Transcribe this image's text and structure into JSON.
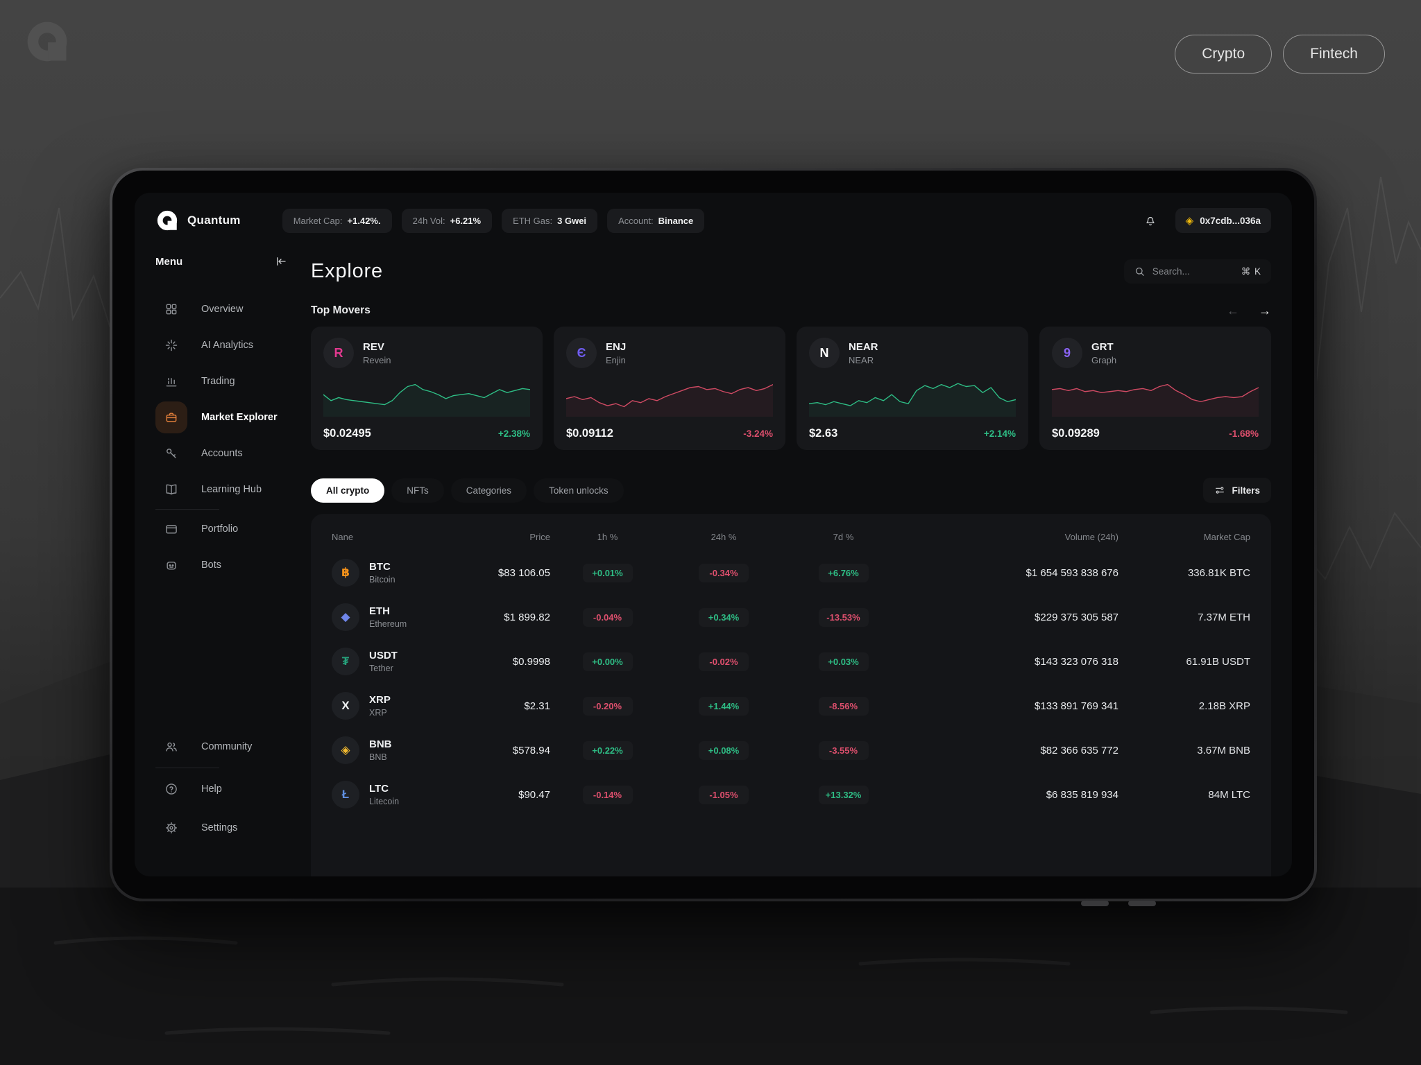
{
  "page": {
    "tags": [
      {
        "label": "Crypto"
      },
      {
        "label": "Fintech"
      }
    ]
  },
  "tablet": {
    "header": {
      "brand": "Quantum",
      "stats": [
        {
          "label": "Market Cap:",
          "value": "+1.42%."
        },
        {
          "label": "24h Vol:",
          "value": "+6.21%"
        },
        {
          "label": "ETH Gas:",
          "value": "3 Gwei"
        },
        {
          "label": "Account:",
          "value": "Binance"
        }
      ],
      "wallet_icon": "◈",
      "wallet": "0x7cdb...036a"
    },
    "sidebar": {
      "title": "Menu",
      "items": [
        {
          "label": "Overview",
          "icon": "overview-icon",
          "active": false
        },
        {
          "label": "AI Analytics",
          "icon": "ai-analytics-icon",
          "active": false
        },
        {
          "label": "Trading",
          "icon": "trading-icon",
          "active": false
        },
        {
          "label": "Market Explorer",
          "icon": "market-explorer-icon",
          "active": true
        },
        {
          "label": "Accounts",
          "icon": "accounts-icon",
          "active": false
        },
        {
          "label": "Learning Hub",
          "icon": "learning-hub-icon",
          "active": false
        },
        {
          "label": "Portfolio",
          "icon": "portfolio-icon",
          "active": false
        },
        {
          "label": "Bots",
          "icon": "bots-icon",
          "active": false
        }
      ],
      "footer_items": [
        {
          "label": "Community",
          "icon": "community-icon"
        },
        {
          "label": "Help",
          "icon": "help-icon"
        },
        {
          "label": "Settings",
          "icon": "settings-icon"
        }
      ]
    },
    "main": {
      "title": "Explore",
      "search": {
        "placeholder": "Search...",
        "shortcut": "⌘ K"
      },
      "top_movers": {
        "title": "Top Movers",
        "prev_icon": "←",
        "next_icon": "→",
        "cards": [
          {
            "symbol": "REV",
            "name": "Revein",
            "glyph": "R",
            "accent": "#e2398f",
            "price": "$0.02495",
            "change": "+2.38%",
            "trend": "up",
            "spark_color": "#2ebd85",
            "spark": [
              18,
              24,
              21,
              23,
              24,
              25,
              26,
              27,
              28,
              24,
              16,
              10,
              8,
              13,
              15,
              18,
              22,
              19,
              18,
              17,
              19,
              21,
              17,
              13,
              16,
              14,
              12,
              13
            ]
          },
          {
            "symbol": "ENJ",
            "name": "Enjin",
            "glyph": "Є",
            "accent": "#6f5cf0",
            "price": "$0.09112",
            "change": "-3.24%",
            "trend": "down",
            "spark_color": "#cf4a63",
            "spark": [
              22,
              20,
              23,
              21,
              26,
              29,
              27,
              30,
              24,
              26,
              22,
              24,
              20,
              17,
              14,
              11,
              10,
              13,
              12,
              15,
              17,
              13,
              11,
              14,
              12,
              8
            ]
          },
          {
            "symbol": "NEAR",
            "name": "NEAR",
            "glyph": "N",
            "accent": "#ffffff",
            "price": "$2.63",
            "change": "+2.14%",
            "trend": "up",
            "spark_color": "#2ebd85",
            "spark": [
              27,
              26,
              28,
              25,
              27,
              29,
              24,
              26,
              21,
              24,
              18,
              25,
              27,
              14,
              9,
              12,
              8,
              11,
              7,
              10,
              9,
              16,
              11,
              21,
              25,
              23
            ]
          },
          {
            "symbol": "GRT",
            "name": "Graph",
            "glyph": "9",
            "accent": "#8a63f5",
            "price": "$0.09289",
            "change": "-1.68%",
            "trend": "down",
            "spark_color": "#cf4a63",
            "spark": [
              13,
              12,
              14,
              12,
              15,
              14,
              16,
              15,
              14,
              15,
              13,
              12,
              14,
              10,
              8,
              14,
              18,
              23,
              25,
              23,
              21,
              20,
              21,
              20,
              15,
              11
            ]
          }
        ]
      },
      "tabs": [
        {
          "label": "All crypto",
          "active": true
        },
        {
          "label": "NFTs",
          "active": false
        },
        {
          "label": "Categories",
          "active": false
        },
        {
          "label": "Token unlocks",
          "active": false
        }
      ],
      "filters_label": "Filters",
      "table": {
        "columns": [
          "Nane",
          "Price",
          "1h %",
          "24h %",
          "7d %",
          "Volume (24h)",
          "Market Cap"
        ],
        "rows": [
          {
            "symbol": "BTC",
            "name": "Bitcoin",
            "glyph": "฿",
            "glyph_color": "#f7931a",
            "price": "$83 106.05",
            "h1": "+0.01%",
            "h1_trend": "up",
            "h24": "-0.34%",
            "h24_trend": "down",
            "d7": "+6.76%",
            "d7_trend": "up",
            "volume": "$1 654 593 838 676",
            "mcap": "336.81K BTC"
          },
          {
            "symbol": "ETH",
            "name": "Ethereum",
            "glyph": "◆",
            "glyph_color": "#6f86ea",
            "price": "$1 899.82",
            "h1": "-0.04%",
            "h1_trend": "down",
            "h24": "+0.34%",
            "h24_trend": "up",
            "d7": "-13.53%",
            "d7_trend": "down",
            "volume": "$229 375 305 587",
            "mcap": "7.37M ETH"
          },
          {
            "symbol": "USDT",
            "name": "Tether",
            "glyph": "₮",
            "glyph_color": "#26a17b",
            "price": "$0.9998",
            "h1": "+0.00%",
            "h1_trend": "up",
            "h24": "-0.02%",
            "h24_trend": "down",
            "d7": "+0.03%",
            "d7_trend": "up",
            "volume": "$143 323 076 318",
            "mcap": "61.91B USDT"
          },
          {
            "symbol": "XRP",
            "name": "XRP",
            "glyph": "X",
            "glyph_color": "#eef0f2",
            "price": "$2.31",
            "h1": "-0.20%",
            "h1_trend": "down",
            "h24": "+1.44%",
            "h24_trend": "up",
            "d7": "-8.56%",
            "d7_trend": "down",
            "volume": "$133 891 769 341",
            "mcap": "2.18B XRP"
          },
          {
            "symbol": "BNB",
            "name": "BNB",
            "glyph": "◈",
            "glyph_color": "#f3ba2f",
            "price": "$578.94",
            "h1": "+0.22%",
            "h1_trend": "up",
            "h24": "+0.08%",
            "h24_trend": "up",
            "d7": "-3.55%",
            "d7_trend": "down",
            "volume": "$82 366 635 772",
            "mcap": "3.67M BNB"
          },
          {
            "symbol": "LTC",
            "name": "Litecoin",
            "glyph": "Ł",
            "glyph_color": "#5f8fe0",
            "price": "$90.47",
            "h1": "-0.14%",
            "h1_trend": "down",
            "h24": "-1.05%",
            "h24_trend": "down",
            "d7": "+13.32%",
            "d7_trend": "up",
            "volume": "$6 835 819 934",
            "mcap": "84M LTC"
          }
        ]
      }
    }
  },
  "colors": {
    "green": "#2ebd85",
    "red": "#dd4f6d",
    "accent_orange": "#e8823c",
    "binance_yellow": "#f0b90b"
  }
}
